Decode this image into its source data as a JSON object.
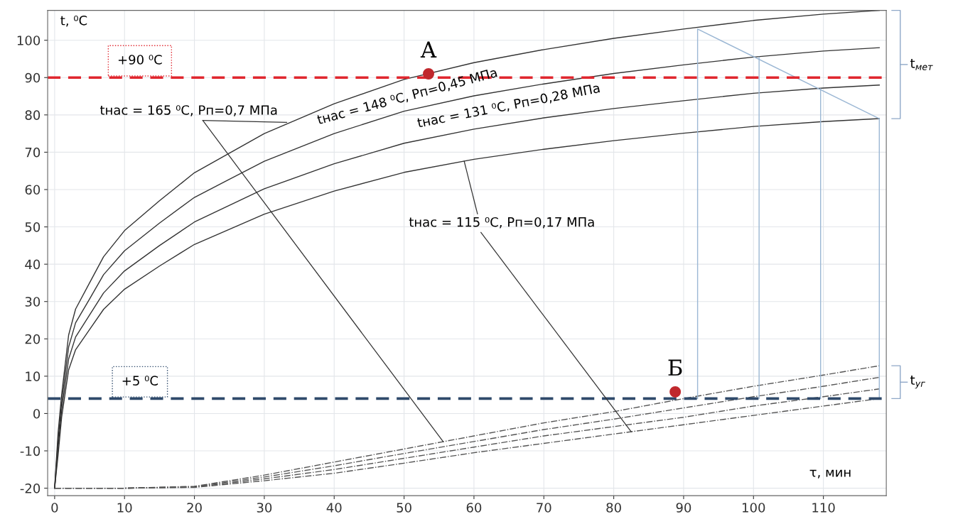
{
  "chart_data": {
    "type": "line",
    "ylabel": "t, ⁰C",
    "xlabel": "τ, мин",
    "xlim": [
      -1,
      119
    ],
    "ylim": [
      -22,
      108
    ],
    "xticks": [
      0,
      10,
      20,
      30,
      40,
      50,
      60,
      70,
      80,
      90,
      100,
      110
    ],
    "yticks": [
      -20,
      -10,
      0,
      10,
      20,
      30,
      40,
      50,
      60,
      70,
      80,
      90,
      100
    ],
    "grid": true,
    "marker": "none",
    "series": [
      {
        "color": "#333333",
        "line_style": "solid",
        "x": [
          0,
          0.5,
          1,
          2,
          3,
          5,
          7,
          10,
          15,
          20,
          30,
          40,
          50,
          60,
          70,
          80,
          90,
          100,
          110,
          118
        ],
        "values": [
          -20,
          -5,
          5,
          21,
          28,
          35,
          42,
          49,
          57,
          64.5,
          75,
          83,
          89.5,
          94,
          97.5,
          100.5,
          103,
          105.3,
          107,
          108
        ]
      },
      {
        "color": "#333333",
        "line_style": "solid",
        "x": [
          0,
          0.5,
          1,
          2,
          3,
          5,
          7,
          10,
          15,
          20,
          30,
          40,
          50,
          60,
          70,
          80,
          90,
          100,
          110,
          118
        ],
        "values": [
          -20,
          -7,
          3,
          17.8,
          24.3,
          30.7,
          37.2,
          43.6,
          51,
          57.9,
          67.6,
          75,
          81,
          85.1,
          88.3,
          91.1,
          93.4,
          95.5,
          97.1,
          98
        ]
      },
      {
        "color": "#333333",
        "line_style": "solid",
        "x": [
          0,
          0.5,
          1,
          2,
          3,
          5,
          7,
          10,
          15,
          20,
          30,
          40,
          50,
          60,
          70,
          80,
          90,
          100,
          110,
          118
        ],
        "values": [
          -20,
          -9,
          1,
          14.6,
          20.5,
          26.4,
          32.3,
          38.2,
          45,
          51.3,
          60.2,
          66.9,
          72.4,
          76.2,
          79.2,
          81.7,
          83.8,
          85.8,
          87.2,
          88
        ]
      },
      {
        "color": "#333333",
        "line_style": "solid",
        "x": [
          0,
          0.5,
          1,
          2,
          3,
          5,
          7,
          10,
          15,
          20,
          30,
          40,
          50,
          60,
          70,
          80,
          90,
          100,
          110,
          118
        ],
        "values": [
          -20,
          -11,
          -1,
          11.7,
          17.1,
          22.5,
          27.9,
          33.3,
          39.5,
          45.3,
          53.4,
          59.6,
          64.6,
          68.1,
          70.8,
          73.1,
          75.1,
          76.9,
          78.2,
          79
        ]
      },
      {
        "color": "#555555",
        "line_style": "dashdot",
        "x": [
          0,
          10,
          20,
          30,
          40,
          50,
          60,
          70,
          80,
          90,
          100,
          110,
          118
        ],
        "values": [
          -20,
          -20,
          -19.5,
          -16.5,
          -13,
          -9.5,
          -6,
          -2.5,
          0.5,
          4,
          7.3,
          10.3,
          12.8
        ]
      },
      {
        "color": "#555555",
        "line_style": "dashdot",
        "x": [
          0,
          10,
          20,
          30,
          40,
          50,
          60,
          70,
          80,
          90,
          100,
          110,
          118
        ],
        "values": [
          -20,
          -20,
          -19.6,
          -17,
          -14,
          -10.7,
          -7.5,
          -4.3,
          -1.5,
          1.5,
          4.5,
          7.3,
          9.7
        ]
      },
      {
        "color": "#555555",
        "line_style": "dashdot",
        "x": [
          0,
          10,
          20,
          30,
          40,
          50,
          60,
          70,
          80,
          90,
          100,
          110,
          118
        ],
        "values": [
          -20,
          -20,
          -19.7,
          -17.5,
          -15,
          -12,
          -9,
          -6,
          -3.5,
          -1,
          2,
          4.5,
          6.6
        ]
      },
      {
        "color": "#555555",
        "line_style": "dashdot",
        "x": [
          0,
          10,
          20,
          30,
          40,
          50,
          60,
          70,
          80,
          90,
          100,
          110,
          118
        ],
        "values": [
          -20,
          -20,
          -19.8,
          -18,
          -16,
          -13.3,
          -10.5,
          -8,
          -5.5,
          -3,
          -0.5,
          2,
          4
        ]
      },
      {
        "color": "#9bb7d4",
        "line_style": "solid",
        "x": [
          92,
          92,
          118,
          118
        ],
        "values": [
          4,
          103,
          79,
          4
        ]
      },
      {
        "color": "#9bb7d4",
        "line_style": "solid",
        "x": [
          100.8,
          100.8
        ],
        "values": [
          4,
          95.5
        ]
      },
      {
        "color": "#9bb7d4",
        "line_style": "solid",
        "x": [
          109.6,
          109.6
        ],
        "values": [
          4,
          87
        ]
      },
      {
        "type": "scatter",
        "marker": "circle",
        "color": "#c0282d",
        "x": [
          53.5
        ],
        "values": [
          91
        ]
      },
      {
        "type": "scatter",
        "marker": "circle",
        "color": "#c0282d",
        "x": [
          88.8
        ],
        "values": [
          5.8
        ]
      }
    ],
    "ref_lines": [
      {
        "axis": "y",
        "value": 90,
        "label": "+90 ⁰C",
        "color": "#e0262e",
        "line_style": "dashed"
      },
      {
        "axis": "y",
        "value": 4,
        "label": "+5 ⁰C",
        "color": "#2f4a6b",
        "line_style": "dashed"
      }
    ],
    "annotations": [
      {
        "text": "tнас = 165 ⁰C, Pп=0,7 МПа",
        "x": 33.2,
        "y": 78
      },
      {
        "text": "tнас = 148 ⁰C, Pп=0,45 МПа",
        "x": 50.5,
        "y": 80.5
      },
      {
        "text": "tнас = 131 ⁰C, Pп=0,28 МПа",
        "x": 65,
        "y": 78
      },
      {
        "text": "tнас = 115 ⁰C, Pп=0,17 МПа",
        "x": 58.6,
        "y": 67.6
      },
      {
        "text": "А",
        "x": 53.5,
        "y": 91
      },
      {
        "text": "Б",
        "x": 88.8,
        "y": 5.8
      },
      "t$_{мет}$",
      "t$_{уг}$"
    ]
  }
}
